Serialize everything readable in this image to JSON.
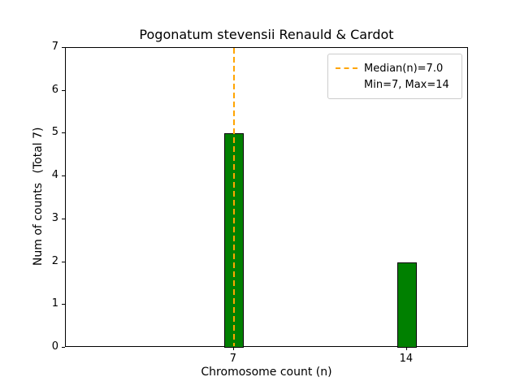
{
  "chart_data": {
    "type": "bar",
    "title": "Pogonatum stevensii Renauld & Cardot",
    "xlabel": "Chromosome count (n)",
    "ylabel": "Num of counts",
    "ylabel_secondary": "(Total 7)",
    "x": [
      7,
      14
    ],
    "values": [
      5,
      2
    ],
    "categories": [
      "7",
      "14"
    ],
    "bar_width_data": 0.8,
    "bar_color": "#008000",
    "bar_edge_color": "#000000",
    "xlim": [
      0.2,
      16.5
    ],
    "ylim": [
      0,
      7
    ],
    "xticks": [
      7,
      14
    ],
    "yticks": [
      0,
      1,
      2,
      3,
      4,
      5,
      6,
      7
    ],
    "median": 7.0,
    "median_line_color": "#FFA500",
    "legend_position": "upper right",
    "grid": false,
    "legend": [
      "Median(n)=7.0",
      "Min=7, Max=14"
    ]
  }
}
